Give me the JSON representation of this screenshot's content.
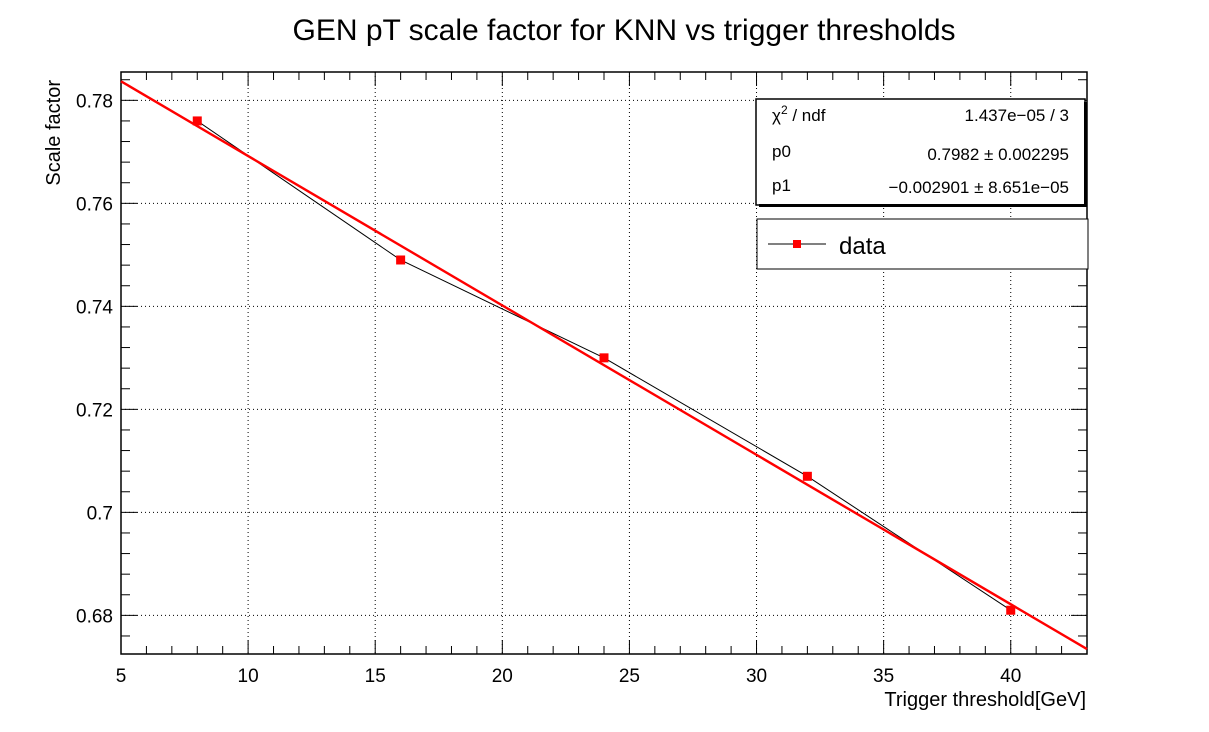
{
  "chart_data": {
    "type": "scatter",
    "title": "GEN pT scale factor for KNN vs trigger thresholds",
    "xlabel": "Trigger threshold[GeV]",
    "ylabel": "Scale factor",
    "xlim": [
      5,
      43
    ],
    "ylim": [
      0.6725,
      0.7855
    ],
    "grid": true,
    "x_ticks": [
      5,
      10,
      15,
      20,
      25,
      30,
      35,
      40
    ],
    "y_ticks": [
      0.68,
      0.7,
      0.72,
      0.74,
      0.76,
      0.78
    ],
    "x_tick_labels": [
      "5",
      "10",
      "15",
      "20",
      "25",
      "30",
      "35",
      "40"
    ],
    "y_tick_labels": [
      "0.68",
      "0.7",
      "0.72",
      "0.74",
      "0.76",
      "0.78"
    ],
    "series": [
      {
        "name": "data",
        "style": "line+markers",
        "color": "#000000",
        "marker_color": "#ff0000",
        "x": [
          8,
          16,
          24,
          32,
          40
        ],
        "y": [
          0.776,
          0.749,
          0.73,
          0.707,
          0.681
        ]
      }
    ],
    "fit": {
      "color": "#ff0000",
      "p0": 0.7982,
      "p1": -0.002901,
      "x_range": [
        5,
        43
      ]
    },
    "stats_box": {
      "rows": [
        {
          "label_main": "χ",
          "label_sup": "2",
          "label_rest": " / ndf",
          "value": "1.437e−05 / 3"
        },
        {
          "label_main": "p0",
          "label_sup": "",
          "label_rest": "",
          "value": "0.7982 ± 0.002295"
        },
        {
          "label_main": "p1",
          "label_sup": "",
          "label_rest": "",
          "value": "−0.002901 ± 8.651e−05"
        }
      ]
    },
    "legend": {
      "placement": "top-right",
      "entries": [
        "data"
      ]
    }
  }
}
